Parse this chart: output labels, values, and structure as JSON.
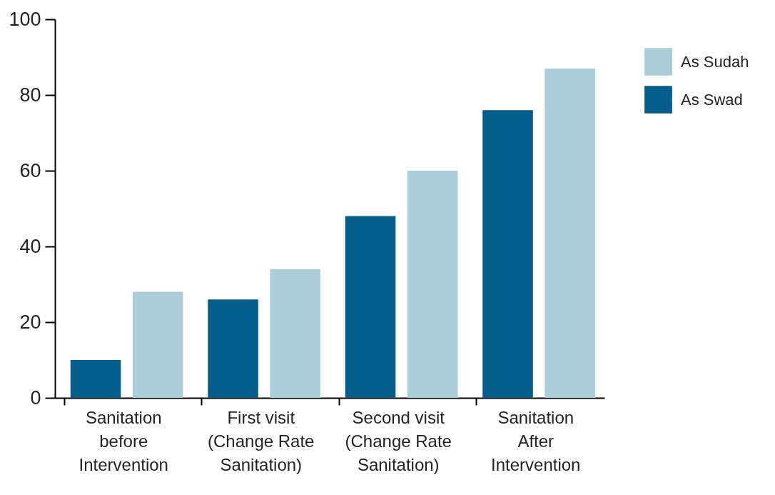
{
  "chart_data": {
    "type": "bar",
    "categories": [
      "Sanitation before Intervention",
      "First visit (Change Rate Sanitation)",
      "Second visit (Change Rate Sanitation)",
      "Sanitation After Intervention"
    ],
    "series": [
      {
        "name": "As Swad",
        "color": "#045e8c",
        "values": [
          10,
          26,
          48,
          76
        ]
      },
      {
        "name": "As Sudah",
        "color": "#abcdd9",
        "values": [
          28,
          34,
          60,
          87
        ]
      }
    ],
    "ylim": [
      0,
      100
    ],
    "yticks": [
      0,
      20,
      40,
      60,
      80,
      100
    ],
    "legend": "top right"
  }
}
